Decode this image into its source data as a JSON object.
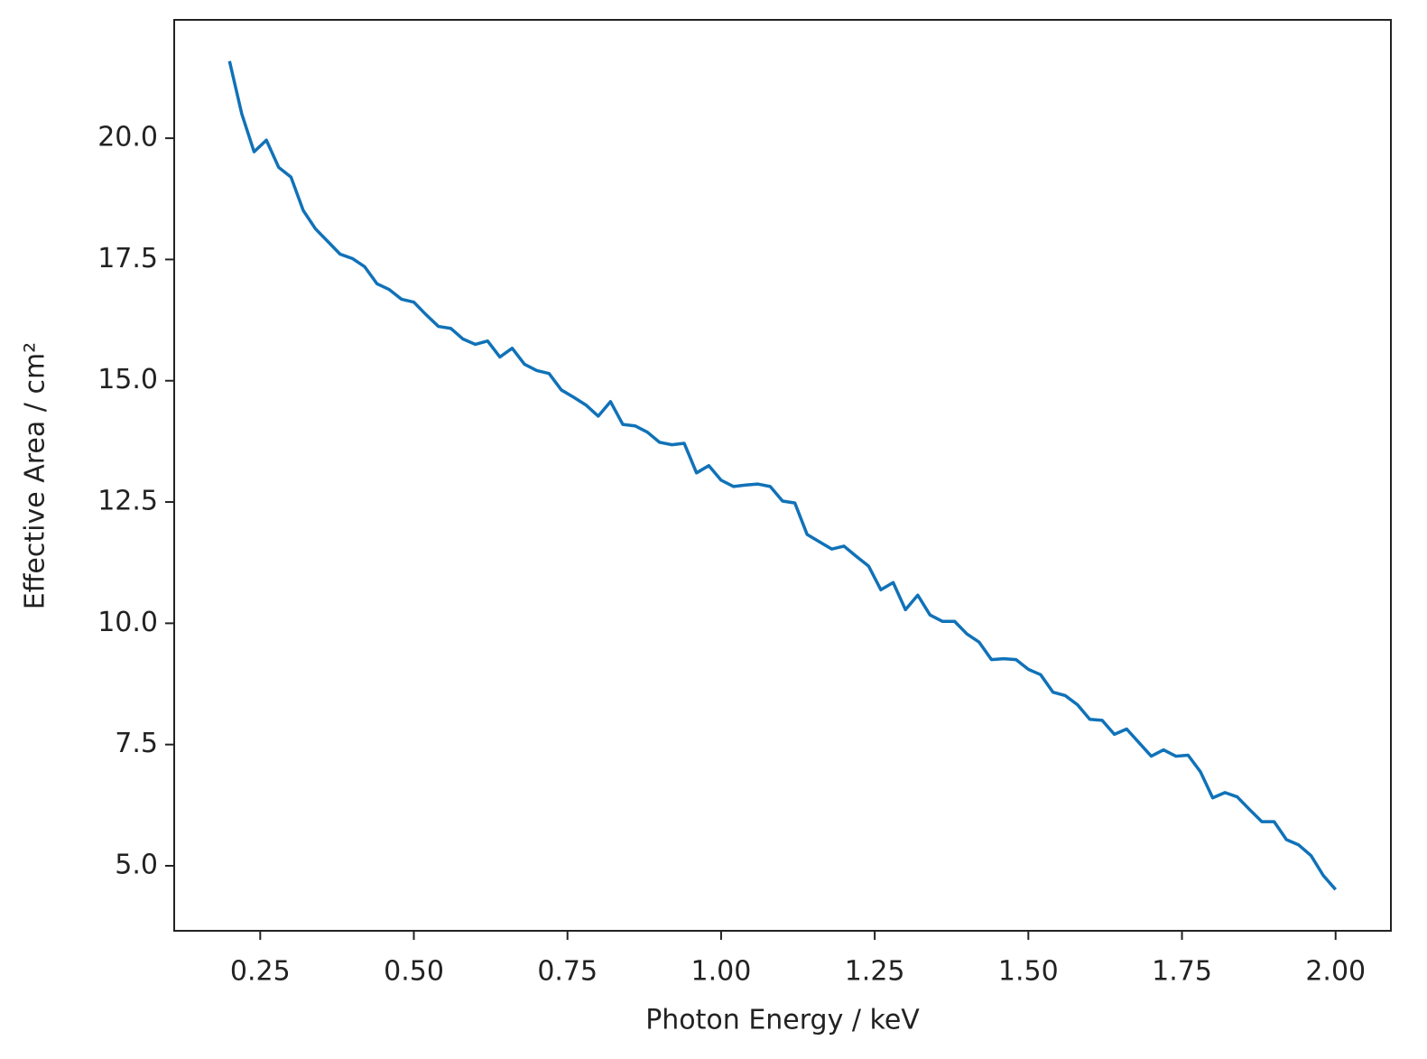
{
  "chart_data": {
    "type": "line",
    "xlabel": "Photon Energy / keV",
    "ylabel": "Effective Area / cm²",
    "x": [
      0.2,
      0.22,
      0.24,
      0.26,
      0.28,
      0.3,
      0.32,
      0.34,
      0.36,
      0.38,
      0.4,
      0.42,
      0.44,
      0.46,
      0.48,
      0.5,
      0.52,
      0.54,
      0.56,
      0.58,
      0.6,
      0.62,
      0.64,
      0.66,
      0.68,
      0.7,
      0.72,
      0.74,
      0.76,
      0.78,
      0.8,
      0.82,
      0.84,
      0.86,
      0.88,
      0.9,
      0.92,
      0.94,
      0.96,
      0.98,
      1.0,
      1.02,
      1.04,
      1.06,
      1.08,
      1.1,
      1.12,
      1.14,
      1.16,
      1.18,
      1.2,
      1.22,
      1.24,
      1.26,
      1.28,
      1.3,
      1.32,
      1.34,
      1.36,
      1.38,
      1.4,
      1.42,
      1.44,
      1.46,
      1.48,
      1.5,
      1.52,
      1.54,
      1.56,
      1.58,
      1.6,
      1.62,
      1.64,
      1.66,
      1.68,
      1.7,
      1.72,
      1.74,
      1.76,
      1.78,
      1.8,
      1.82,
      1.84,
      1.86,
      1.88,
      1.9,
      1.92,
      1.94,
      1.96,
      1.98,
      2.0
    ],
    "series": [
      {
        "color": "#1072b8",
        "values": [
          21.59,
          20.5,
          19.72,
          19.96,
          19.4,
          19.2,
          18.51,
          18.13,
          17.87,
          17.61,
          17.52,
          17.35,
          17.0,
          16.88,
          16.68,
          16.62,
          16.36,
          16.12,
          16.08,
          15.86,
          15.75,
          15.82,
          15.49,
          15.67,
          15.34,
          15.21,
          15.15,
          14.81,
          14.66,
          14.5,
          14.27,
          14.57,
          14.1,
          14.07,
          13.94,
          13.73,
          13.68,
          13.71,
          13.1,
          13.25,
          12.95,
          12.82,
          12.85,
          12.87,
          12.82,
          12.52,
          12.48,
          11.83,
          11.68,
          11.53,
          11.59,
          11.38,
          11.18,
          10.69,
          10.84,
          10.28,
          10.58,
          10.17,
          10.04,
          10.04,
          9.78,
          9.61,
          9.25,
          9.27,
          9.25,
          9.05,
          8.94,
          8.58,
          8.51,
          8.32,
          8.02,
          8.0,
          7.71,
          7.82,
          7.54,
          7.26,
          7.39,
          7.26,
          7.28,
          6.94,
          6.4,
          6.51,
          6.42,
          6.16,
          5.91,
          5.91,
          5.54,
          5.43,
          5.21,
          4.8,
          4.51
        ]
      }
    ],
    "xlim": [
      0.11,
      2.09
    ],
    "ylim": [
      3.66,
      22.44
    ],
    "xticks": [
      0.25,
      {
        "value": 0.5,
        "label": "0.50"
      },
      0.75,
      {
        "value": 1,
        "label": "1.00"
      },
      1.25,
      {
        "value": 1.5,
        "label": "1.50"
      },
      1.75,
      {
        "value": 2,
        "label": "2.00"
      }
    ],
    "yticks": [
      {
        "value": 5,
        "label": "5.0"
      },
      7.5,
      {
        "value": 10,
        "label": "10.0"
      },
      12.5,
      {
        "value": 15,
        "label": "15.0"
      },
      17.5,
      {
        "value": 20,
        "label": "20.0"
      }
    ]
  }
}
